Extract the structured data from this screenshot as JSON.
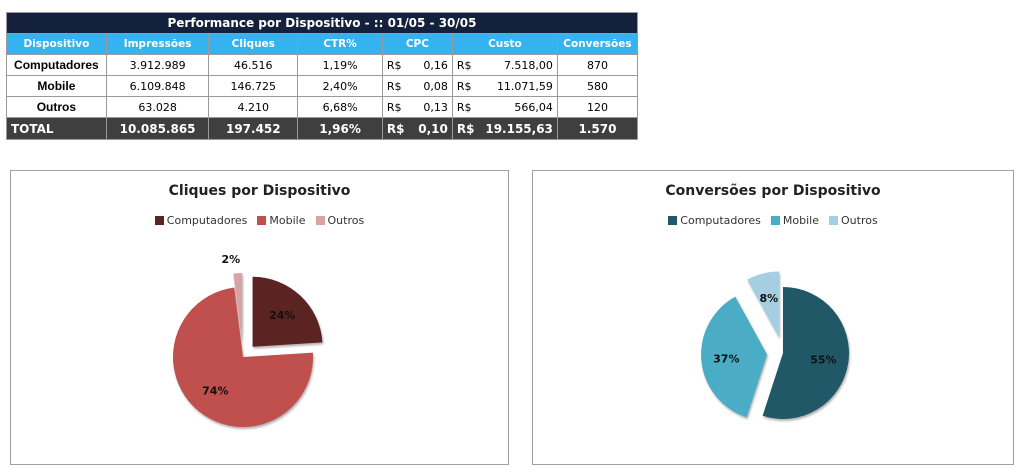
{
  "table": {
    "title": "Performance por Dispositivo - :: 01/05 - 30/05",
    "headers": [
      "Dispositivo",
      "Impressões",
      "Cliques",
      "CTR%",
      "CPC",
      "Custo",
      "Conversões"
    ],
    "currency": "R$",
    "rows": [
      {
        "device": "Computadores",
        "impressions": "3.912.989",
        "clicks": "46.516",
        "ctr": "1,19%",
        "cpc": "0,16",
        "cost": "7.518,00",
        "conversions": "870"
      },
      {
        "device": "Mobile",
        "impressions": "6.109.848",
        "clicks": "146.725",
        "ctr": "2,40%",
        "cpc": "0,08",
        "cost": "11.071,59",
        "conversions": "580"
      },
      {
        "device": "Outros",
        "impressions": "63.028",
        "clicks": "4.210",
        "ctr": "6,68%",
        "cpc": "0,13",
        "cost": "566,04",
        "conversions": "120"
      }
    ],
    "total": {
      "device": "TOTAL",
      "impressions": "10.085.865",
      "clicks": "197.452",
      "ctr": "1,96%",
      "cpc": "0,10",
      "cost": "19.155,63",
      "conversions": "1.570"
    }
  },
  "chart_data": [
    {
      "type": "pie",
      "title": "Cliques por Dispositivo",
      "legend": "top",
      "categories": [
        "Computadores",
        "Mobile",
        "Outros"
      ],
      "values": [
        24,
        74,
        2
      ],
      "labels": [
        "24%",
        "74%",
        "2%"
      ],
      "colors": [
        "#5c2323",
        "#c0504d",
        "#d9a3a3"
      ],
      "exploded": [
        true,
        false,
        true
      ]
    },
    {
      "type": "pie",
      "title": "Conversões por Dispositivo",
      "legend": "top",
      "categories": [
        "Computadores",
        "Mobile",
        "Outros"
      ],
      "values": [
        55,
        37,
        8
      ],
      "labels": [
        "55%",
        "37%",
        "8%"
      ],
      "colors": [
        "#215868",
        "#4bacc6",
        "#a5cfe0"
      ],
      "exploded": [
        false,
        true,
        true
      ]
    }
  ]
}
